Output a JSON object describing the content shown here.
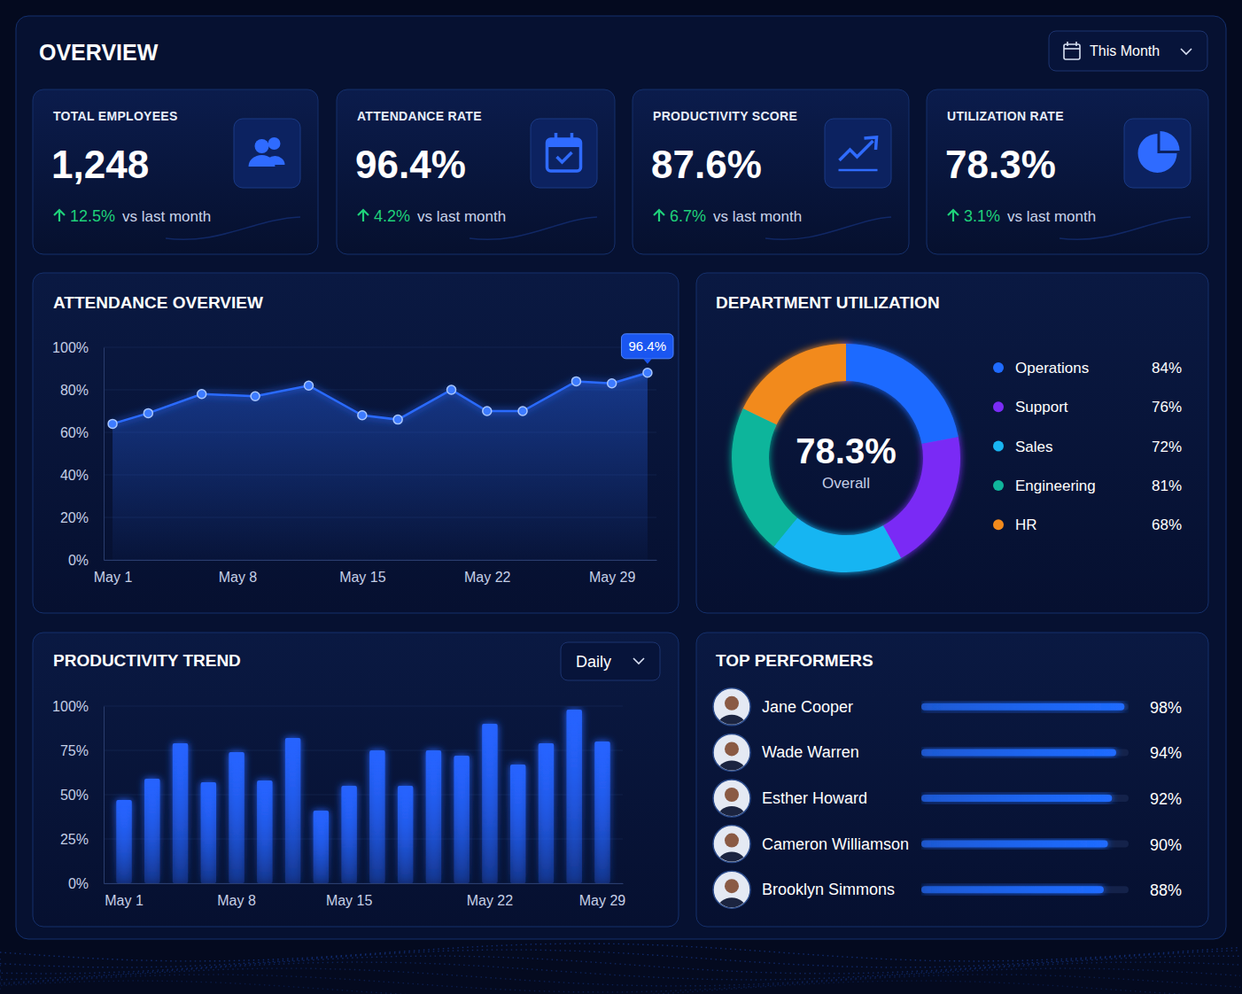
{
  "header": {
    "title": "OVERVIEW",
    "filter": "This Month"
  },
  "kpis": [
    {
      "label": "TOTAL EMPLOYEES",
      "value": "1,248",
      "change": "12.5%",
      "comparison": "vs last month"
    },
    {
      "label": "ATTENDANCE RATE",
      "value": "96.4%",
      "change": "4.2%",
      "comparison": "vs last month"
    },
    {
      "label": "PRODUCTIVITY SCORE",
      "value": "87.6%",
      "change": "6.7%",
      "comparison": "vs last month"
    },
    {
      "label": "UTILIZATION RATE",
      "value": "78.3%",
      "change": "3.1%",
      "comparison": "vs last month"
    }
  ],
  "chart_data": [
    {
      "type": "line",
      "title": "ATTENDANCE OVERVIEW",
      "x": [
        1,
        3,
        6,
        9,
        12,
        15,
        17,
        20,
        22,
        24,
        27,
        29,
        31
      ],
      "values": [
        64,
        69,
        78,
        77,
        82,
        68,
        66,
        80,
        70,
        70,
        84,
        83,
        88
      ],
      "color": "#2b6bff",
      "marker": "circle",
      "xlim": [
        0.5,
        31.5
      ],
      "xticks": [
        {
          "value": 1,
          "label": "May 1"
        },
        {
          "value": 8,
          "label": "May 8"
        },
        {
          "value": 15,
          "label": "May 15"
        },
        {
          "value": 22,
          "label": "May 22"
        },
        {
          "value": 29,
          "label": "May 29"
        }
      ],
      "ylim": [
        0,
        100
      ],
      "yticks": [
        {
          "value": 0,
          "label": "0%"
        },
        {
          "value": 20,
          "label": "20%"
        },
        {
          "value": 40,
          "label": "40%"
        },
        {
          "value": 60,
          "label": "60%"
        },
        {
          "value": 80,
          "label": "80%"
        },
        {
          "value": 100,
          "label": "100%"
        }
      ],
      "grid": true,
      "annotations": [
        "96.4%"
      ]
    },
    {
      "type": "donut",
      "title": "DEPARTMENT UTILIZATION",
      "categories": [
        "Operations",
        "Support",
        "Sales",
        "Engineering",
        "HR"
      ],
      "values": [
        84,
        76,
        72,
        81,
        68
      ],
      "value_labels": [
        "84%",
        "76%",
        "72%",
        "81%",
        "68%"
      ],
      "colors": [
        "#1f6bff",
        "#7a2cf5",
        "#19b5f2",
        "#10b59b",
        "#f28a1c"
      ],
      "legend": "right",
      "annotations": [
        "78.3%",
        "Overall"
      ]
    },
    {
      "type": "bar",
      "title": "PRODUCTIVITY TREND",
      "filter": "Daily",
      "categories": [
        "May 1",
        null,
        null,
        null,
        "May 8",
        null,
        null,
        null,
        "May 15",
        null,
        null,
        null,
        null,
        "May 22",
        null,
        null,
        null,
        "May 29"
      ],
      "values": [
        47,
        59,
        79,
        57,
        74,
        58,
        82,
        41,
        55,
        75,
        55,
        75,
        72,
        90,
        67,
        79,
        98,
        80
      ],
      "color": "#2563ff",
      "ylim": [
        0,
        100
      ],
      "yticks": [
        {
          "value": 0,
          "label": "0%"
        },
        {
          "value": 25,
          "label": "25%"
        },
        {
          "value": 50,
          "label": "50%"
        },
        {
          "value": 75,
          "label": "75%"
        },
        {
          "value": 100,
          "label": "100%"
        }
      ],
      "grid": true
    },
    {
      "type": "bar",
      "orientation": "horizontal",
      "title": "TOP PERFORMERS",
      "categories": [
        "Jane Cooper",
        "Wade Warren",
        "Esther Howard",
        "Cameron Williamson",
        "Brooklyn Simmons"
      ],
      "values": [
        98,
        94,
        92,
        90,
        88
      ],
      "value_labels": [
        "98%",
        "94%",
        "92%",
        "90%",
        "88%"
      ],
      "data_labels": true,
      "xlim": [
        0,
        100
      ],
      "tick_labels": false,
      "color": "#1f6bff"
    }
  ]
}
